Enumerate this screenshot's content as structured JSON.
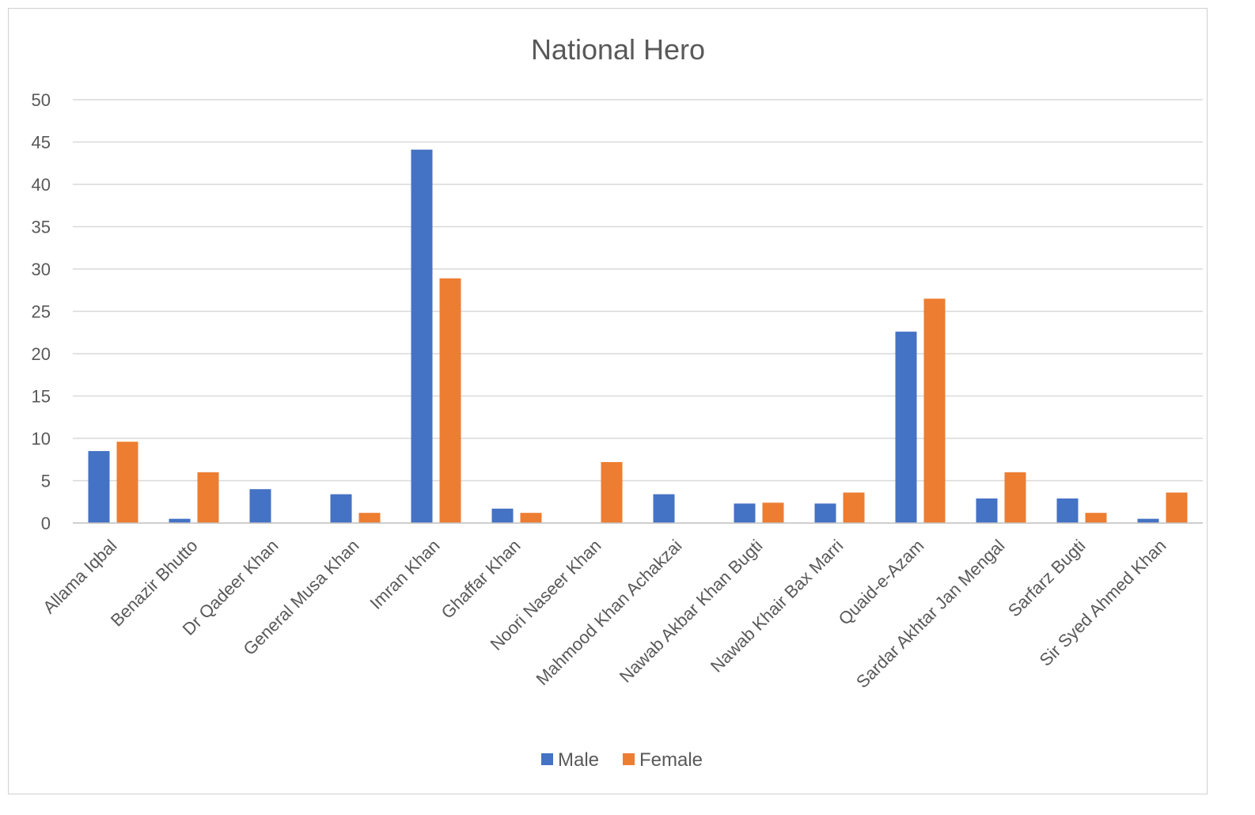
{
  "chart_data": {
    "type": "bar",
    "title": "National Hero",
    "xlabel": "",
    "ylabel": "",
    "ylim": [
      0,
      50
    ],
    "yticks": [
      0,
      5,
      10,
      15,
      20,
      25,
      30,
      35,
      40,
      45,
      50
    ],
    "grid": true,
    "legend_position": "bottom",
    "categories": [
      "Allama Iqbal",
      "Benazir Bhutto",
      "Dr Qadeer Khan",
      "General Musa Khan",
      "Imran Khan",
      "Ghaffar Khan",
      "Noori Naseer Khan",
      "Mahmood Khan Achakzai",
      "Nawab Akbar Khan Bugti",
      "Nawab Khair Bax Marri",
      "Quaid-e-Azam",
      "Sardar Akhtar Jan Mengal",
      "Sarfarz Bugti",
      "Sir Syed Ahmed Khan"
    ],
    "series": [
      {
        "name": "Male",
        "color": "#4472C4",
        "values": [
          8.5,
          0.5,
          4.0,
          3.4,
          44.1,
          1.7,
          0,
          3.4,
          2.3,
          2.3,
          22.6,
          2.9,
          2.9,
          0.5
        ]
      },
      {
        "name": "Female",
        "color": "#ED7D31",
        "values": [
          9.6,
          6.0,
          0,
          1.2,
          28.9,
          1.2,
          7.2,
          0,
          2.4,
          3.6,
          26.5,
          6.0,
          1.2,
          3.6
        ]
      }
    ]
  }
}
